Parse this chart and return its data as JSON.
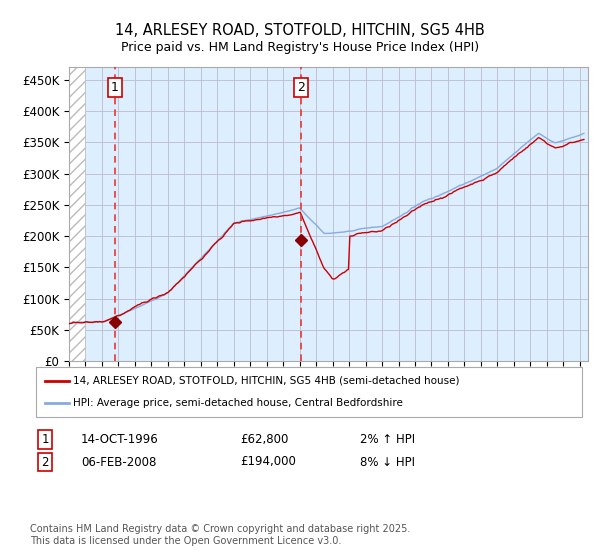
{
  "title": "14, ARLESEY ROAD, STOTFOLD, HITCHIN, SG5 4HB",
  "subtitle": "Price paid vs. HM Land Registry's House Price Index (HPI)",
  "ylim": [
    0,
    470000
  ],
  "yticks": [
    0,
    50000,
    100000,
    150000,
    200000,
    250000,
    300000,
    350000,
    400000,
    450000
  ],
  "ytick_labels": [
    "£0",
    "£50K",
    "£100K",
    "£150K",
    "£200K",
    "£250K",
    "£300K",
    "£350K",
    "£400K",
    "£450K"
  ],
  "xlim_start": 1994.0,
  "xlim_end": 2025.5,
  "hpi_color": "#88aadd",
  "price_color": "#cc0000",
  "marker_color": "#880000",
  "vline_color": "#ee3333",
  "sale1_x": 1996.79,
  "sale1_y": 62800,
  "sale1_label": "1",
  "sale2_x": 2008.09,
  "sale2_y": 194000,
  "sale2_label": "2",
  "legend_line1": "14, ARLESEY ROAD, STOTFOLD, HITCHIN, SG5 4HB (semi-detached house)",
  "legend_line2": "HPI: Average price, semi-detached house, Central Bedfordshire",
  "sale1_date": "14-OCT-1996",
  "sale1_price": "£62,800",
  "sale1_hpi": "2% ↑ HPI",
  "sale2_date": "06-FEB-2008",
  "sale2_price": "£194,000",
  "sale2_hpi": "8% ↓ HPI",
  "footnote": "Contains HM Land Registry data © Crown copyright and database right 2025.\nThis data is licensed under the Open Government Licence v3.0.",
  "bg_color": "#ddeeff",
  "hatch_color": "#bbbbbb",
  "grid_color": "#bbbbcc",
  "hatch_end_year": 1995.0
}
